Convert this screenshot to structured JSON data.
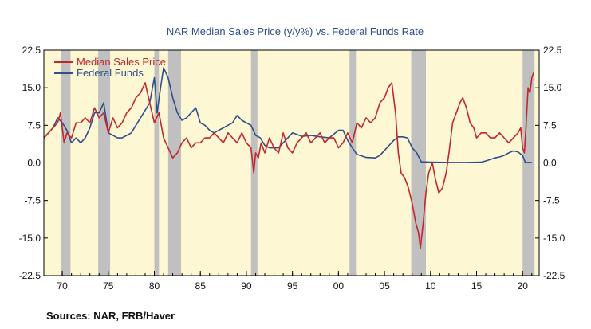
{
  "chart_data": {
    "type": "line",
    "title": "NAR Median Sales Price (y/y%) vs. Federal Funds Rate",
    "source": "Sources:  NAR, FRB/Haver",
    "xlabel": "",
    "ylabel": "",
    "xlim": [
      1968,
      2021.8
    ],
    "ylim": [
      -22.5,
      22.5
    ],
    "x_ticks": [
      1970,
      1975,
      1980,
      1985,
      1990,
      1995,
      2000,
      2005,
      2010,
      2015,
      2020
    ],
    "x_tick_labels": [
      "70",
      "75",
      "80",
      "85",
      "90",
      "95",
      "00",
      "05",
      "10",
      "15",
      "20"
    ],
    "y_ticks": [
      22.5,
      15.0,
      7.5,
      0.0,
      -7.5,
      -15.0,
      -22.5
    ],
    "y_tick_labels": [
      "22.5",
      "15.0",
      "7.5",
      "0.0",
      "-7.5",
      "-15.0",
      "-22.5"
    ],
    "grid": false,
    "legend_position": "top-left",
    "recessions": [
      [
        1969.9,
        1970.9
      ],
      [
        1973.9,
        1975.2
      ],
      [
        1980.0,
        1980.5
      ],
      [
        1981.5,
        1982.9
      ],
      [
        1990.5,
        1991.2
      ],
      [
        2001.2,
        2001.9
      ],
      [
        2007.9,
        2009.5
      ],
      [
        2020.0,
        2021.3
      ]
    ],
    "colors": {
      "background": "#fdf8d3",
      "recession": "#c0c0c0",
      "frame": "#000000",
      "zero_line": "#000000"
    },
    "series": [
      {
        "name": "Median Sales Price",
        "color": "#c1272d",
        "x": [
          1968.0,
          1968.5,
          1969.0,
          1969.5,
          1969.8,
          1970.2,
          1970.5,
          1971.0,
          1971.5,
          1972.0,
          1972.5,
          1973.0,
          1973.5,
          1974.0,
          1974.5,
          1975.0,
          1975.5,
          1976.0,
          1976.5,
          1977.0,
          1977.5,
          1978.0,
          1978.5,
          1979.0,
          1979.5,
          1980.0,
          1980.5,
          1981.0,
          1981.5,
          1982.0,
          1982.5,
          1983.0,
          1983.5,
          1984.0,
          1984.5,
          1985.0,
          1985.5,
          1986.0,
          1986.5,
          1987.0,
          1987.5,
          1988.0,
          1988.5,
          1989.0,
          1989.5,
          1990.0,
          1990.5,
          1990.8,
          1991.0,
          1991.3,
          1991.6,
          1992.0,
          1992.5,
          1993.0,
          1993.5,
          1994.0,
          1994.5,
          1995.0,
          1995.5,
          1996.0,
          1996.5,
          1997.0,
          1997.5,
          1998.0,
          1998.5,
          1999.0,
          1999.5,
          2000.0,
          2000.5,
          2001.0,
          2001.5,
          2002.0,
          2002.5,
          2003.0,
          2003.5,
          2004.0,
          2004.5,
          2005.0,
          2005.4,
          2005.8,
          2006.2,
          2006.5,
          2006.8,
          2007.2,
          2007.6,
          2008.0,
          2008.4,
          2008.7,
          2008.9,
          2009.2,
          2009.5,
          2009.8,
          2010.2,
          2010.5,
          2010.9,
          2011.3,
          2011.7,
          2012.0,
          2012.4,
          2012.8,
          2013.2,
          2013.5,
          2013.9,
          2014.3,
          2014.7,
          2015.0,
          2015.5,
          2016.0,
          2016.5,
          2017.0,
          2017.5,
          2018.0,
          2018.5,
          2019.0,
          2019.5,
          2019.8,
          2020.0,
          2020.2,
          2020.4,
          2020.6,
          2020.8,
          2021.0,
          2021.2
        ],
        "values": [
          5,
          6,
          7,
          8,
          10,
          4,
          6,
          5,
          8,
          8,
          9,
          8,
          11,
          9,
          10,
          6,
          9,
          7,
          8,
          10,
          11,
          13,
          14,
          16,
          12,
          8,
          10,
          5,
          3,
          1,
          2,
          4,
          5,
          3,
          4,
          4,
          5,
          5,
          6,
          5,
          4,
          6,
          5,
          4,
          6,
          4,
          3,
          -2,
          2,
          1,
          4,
          2,
          5,
          3,
          2,
          6,
          3,
          2,
          4,
          5,
          6,
          4,
          5,
          6,
          4,
          5,
          5,
          3,
          4,
          6,
          4,
          8,
          7,
          9,
          8,
          9,
          12,
          13,
          15,
          16,
          10,
          2,
          -2,
          -3,
          -5,
          -8,
          -12,
          -14,
          -17,
          -12,
          -6,
          -2,
          0,
          -3,
          -6,
          -5,
          -2,
          2,
          8,
          10,
          12,
          13,
          11,
          8,
          7,
          5,
          6,
          6,
          5,
          5,
          6,
          5,
          4,
          5,
          6,
          7,
          3,
          2,
          8,
          15,
          14,
          17,
          18
        ]
      },
      {
        "name": "Federal Funds",
        "color": "#2e4e8c",
        "x": [
          1968.0,
          1968.5,
          1969.0,
          1969.5,
          1970.0,
          1970.5,
          1971.0,
          1971.5,
          1972.0,
          1972.5,
          1973.0,
          1973.5,
          1974.0,
          1974.5,
          1975.0,
          1975.5,
          1976.0,
          1976.5,
          1977.0,
          1977.5,
          1978.0,
          1978.5,
          1979.0,
          1979.5,
          1980.0,
          1980.3,
          1980.6,
          1981.0,
          1981.5,
          1982.0,
          1982.5,
          1983.0,
          1983.5,
          1984.0,
          1984.5,
          1985.0,
          1985.5,
          1986.0,
          1986.5,
          1987.0,
          1987.5,
          1988.0,
          1988.5,
          1989.0,
          1989.5,
          1990.0,
          1990.5,
          1991.0,
          1991.5,
          1992.0,
          1992.5,
          1993.0,
          1993.5,
          1994.0,
          1994.5,
          1995.0,
          1995.5,
          1996.0,
          1997.0,
          1998.0,
          1999.0,
          2000.0,
          2000.5,
          2001.0,
          2001.5,
          2002.0,
          2003.0,
          2004.0,
          2004.5,
          2005.0,
          2005.5,
          2006.0,
          2006.5,
          2007.0,
          2007.5,
          2008.0,
          2008.5,
          2009.0,
          2010.0,
          2012.0,
          2014.0,
          2015.5,
          2016.0,
          2017.0,
          2017.5,
          2018.0,
          2018.5,
          2019.0,
          2019.5,
          2020.0,
          2020.3,
          2021.0
        ],
        "values": [
          5.0,
          6.0,
          7.0,
          9.0,
          8.0,
          6.5,
          4.0,
          5.0,
          4.0,
          5.0,
          7.0,
          10.0,
          10.0,
          12.0,
          6.0,
          5.5,
          5.0,
          5.0,
          5.5,
          6.0,
          7.5,
          9.0,
          10.5,
          12.0,
          17.0,
          10.0,
          14.0,
          19.0,
          17.0,
          13.0,
          10.0,
          8.5,
          9.0,
          10.0,
          11.0,
          8.0,
          7.5,
          6.5,
          6.0,
          6.5,
          7.0,
          7.5,
          8.0,
          9.5,
          8.5,
          8.0,
          7.5,
          5.5,
          5.0,
          3.5,
          3.0,
          3.0,
          3.0,
          4.0,
          5.0,
          6.0,
          5.7,
          5.3,
          5.5,
          5.2,
          5.0,
          6.5,
          6.5,
          4.5,
          3.0,
          1.7,
          1.1,
          1.0,
          1.5,
          2.5,
          3.5,
          4.5,
          5.2,
          5.2,
          5.0,
          3.0,
          2.0,
          0.2,
          0.15,
          0.1,
          0.1,
          0.15,
          0.4,
          1.0,
          1.2,
          1.5,
          2.0,
          2.4,
          2.2,
          1.5,
          0.1,
          0.1
        ]
      }
    ]
  }
}
